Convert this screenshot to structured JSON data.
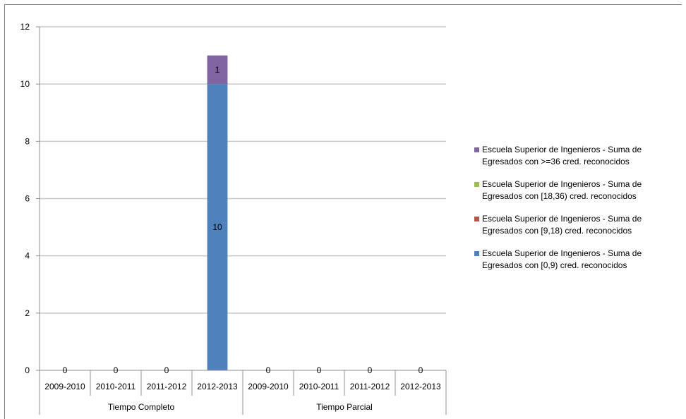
{
  "chart_data": {
    "type": "bar",
    "stacked": true,
    "y_ticks": [
      0,
      2,
      4,
      6,
      8,
      10,
      12
    ],
    "ylim": [
      0,
      12
    ],
    "grid": true,
    "legend_position": "right",
    "categories": [
      "2009-2010",
      "2010-2011",
      "2011-2012",
      "2012-2013",
      "2009-2010",
      "2010-2011",
      "2011-2012",
      "2012-2013"
    ],
    "groups": [
      {
        "label": "Tiempo Completo",
        "span": 4
      },
      {
        "label": "Tiempo Parcial",
        "span": 4
      }
    ],
    "series": [
      {
        "name": "Escuela Superior de Ingenieros - Suma de Egresados con [0,9) cred. reconocidos",
        "color": "#4f81bd",
        "values": [
          0,
          0,
          0,
          10,
          0,
          0,
          0,
          0
        ]
      },
      {
        "name": "Escuela Superior de Ingenieros - Suma de Egresados con [9,18) cred. reconocidos",
        "color": "#c0504d",
        "values": [
          0,
          0,
          0,
          0,
          0,
          0,
          0,
          0
        ]
      },
      {
        "name": "Escuela Superior de Ingenieros - Suma de Egresados con [18,36) cred. reconocidos",
        "color": "#9bbb59",
        "values": [
          0,
          0,
          0,
          0,
          0,
          0,
          0,
          0
        ]
      },
      {
        "name": "Escuela Superior de Ingenieros - Suma de Egresados con >=36 cred. reconocidos",
        "color": "#8064a2",
        "values": [
          0,
          0,
          0,
          1,
          0,
          0,
          0,
          0
        ]
      }
    ],
    "data_labels": [
      {
        "category_index": 0,
        "text": "0"
      },
      {
        "category_index": 1,
        "text": "0"
      },
      {
        "category_index": 2,
        "text": "0"
      },
      {
        "category_index": 4,
        "text": "0"
      },
      {
        "category_index": 5,
        "text": "0"
      },
      {
        "category_index": 6,
        "text": "0"
      },
      {
        "category_index": 7,
        "text": "0"
      }
    ],
    "legend_order": [
      3,
      2,
      1,
      0
    ]
  }
}
